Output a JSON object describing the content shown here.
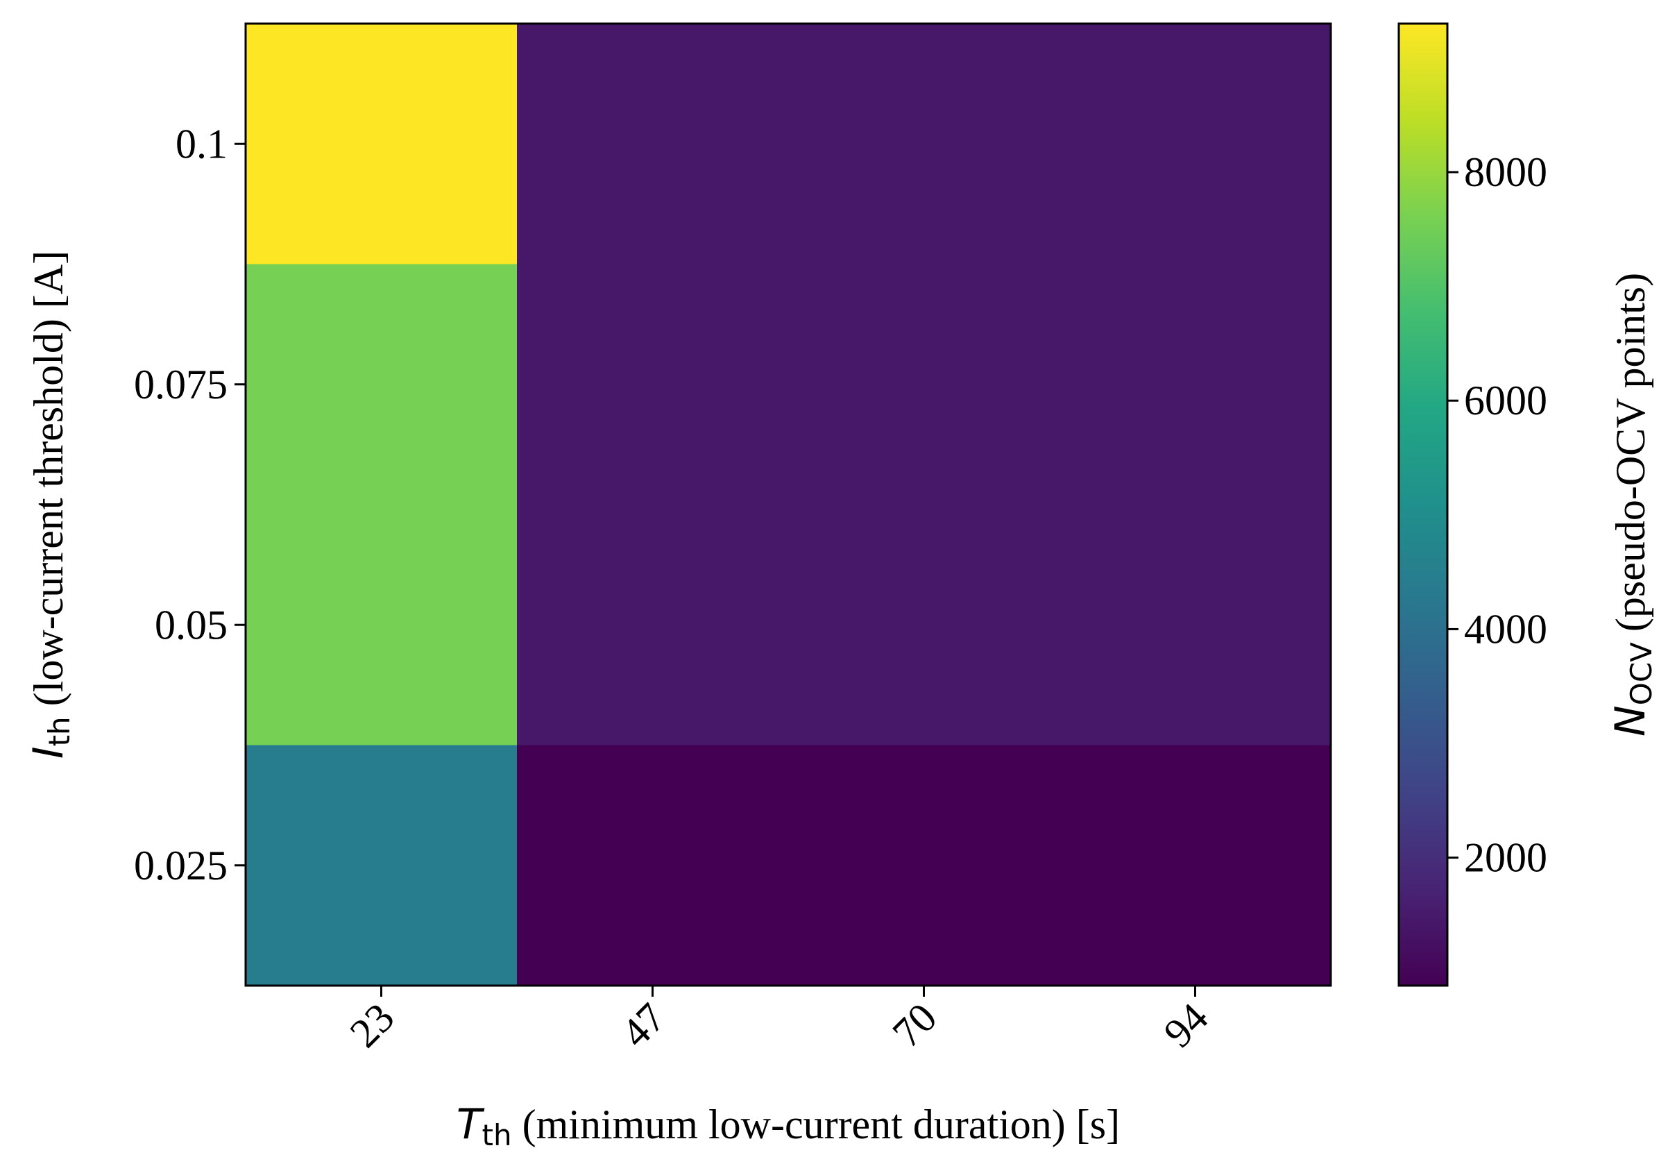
{
  "chart_data": {
    "type": "heatmap",
    "x": {
      "categories": [
        "23",
        "47",
        "70",
        "94"
      ],
      "label_symbol": "T",
      "label_subscript": "th",
      "label_text": " (minimum low-current duration) [s]"
    },
    "y": {
      "categories": [
        "0.1",
        "0.075",
        "0.05",
        "0.025"
      ],
      "label_symbol": "I",
      "label_subscript": "th",
      "label_text": " (low-current threshold) [A]"
    },
    "values": [
      [
        9300,
        1450,
        1450,
        1450
      ],
      [
        7550,
        1450,
        1450,
        1450
      ],
      [
        7550,
        1450,
        1450,
        1450
      ],
      [
        4400,
        880,
        880,
        880
      ]
    ],
    "colorbar": {
      "colormap": "viridis",
      "vmin": 880,
      "vmax": 9300,
      "ticks": [
        "2000",
        "4000",
        "6000",
        "8000"
      ],
      "label_symbol": "N",
      "label_subscript": "OCV",
      "label_text": " (pseudo-OCV points)"
    },
    "grid": false,
    "legend": "none"
  }
}
